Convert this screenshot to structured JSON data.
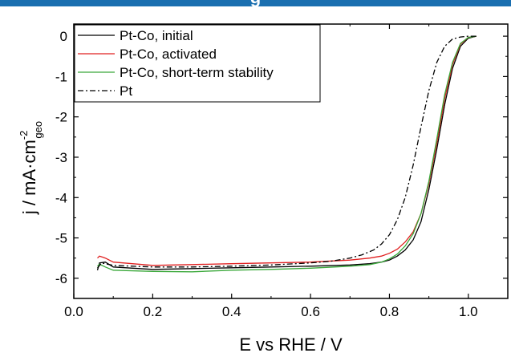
{
  "header": {
    "banner_fragment": "g",
    "banner_color": "#1a6fb0"
  },
  "chart_data": {
    "type": "line",
    "xlabel": "E vs RHE / V",
    "ylabel": "j / mA·cm",
    "ylabel_sup": "-2",
    "ylabel_sub": "geo",
    "xlim": [
      0.0,
      1.1
    ],
    "ylim": [
      -6.5,
      0.3
    ],
    "x_ticks": [
      0.0,
      0.2,
      0.4,
      0.6,
      0.8,
      1.0
    ],
    "x_tick_labels": [
      "0.0",
      "0.2",
      "0.4",
      "0.6",
      "0.8",
      "1.0"
    ],
    "y_ticks": [
      0,
      -1,
      -2,
      -3,
      -4,
      -5,
      -6
    ],
    "y_tick_labels": [
      "0",
      "-1",
      "-2",
      "-3",
      "-4",
      "-5",
      "-6"
    ],
    "legend_position": "top-left",
    "series": [
      {
        "name": "Pt-Co, initial",
        "color": "#000000",
        "dash": "solid",
        "x": [
          0.06,
          0.065,
          0.08,
          0.1,
          0.2,
          0.3,
          0.4,
          0.5,
          0.6,
          0.7,
          0.75,
          0.78,
          0.8,
          0.82,
          0.84,
          0.86,
          0.88,
          0.9,
          0.92,
          0.94,
          0.96,
          0.98,
          1.0,
          1.02
        ],
        "y": [
          -5.8,
          -5.62,
          -5.6,
          -5.72,
          -5.78,
          -5.76,
          -5.74,
          -5.72,
          -5.7,
          -5.67,
          -5.64,
          -5.6,
          -5.55,
          -5.45,
          -5.3,
          -5.05,
          -4.6,
          -3.8,
          -2.8,
          -1.7,
          -0.8,
          -0.25,
          -0.05,
          0.0
        ]
      },
      {
        "name": "Pt-Co, activated",
        "color": "#e02020",
        "dash": "solid",
        "x": [
          0.06,
          0.065,
          0.08,
          0.1,
          0.2,
          0.3,
          0.4,
          0.5,
          0.6,
          0.7,
          0.75,
          0.78,
          0.8,
          0.82,
          0.84,
          0.86,
          0.88,
          0.9,
          0.92,
          0.94,
          0.96,
          0.98,
          1.0,
          1.02
        ],
        "y": [
          -5.5,
          -5.45,
          -5.5,
          -5.6,
          -5.68,
          -5.66,
          -5.64,
          -5.62,
          -5.6,
          -5.55,
          -5.5,
          -5.45,
          -5.38,
          -5.28,
          -5.1,
          -4.85,
          -4.4,
          -3.65,
          -2.65,
          -1.55,
          -0.7,
          -0.2,
          -0.03,
          0.0
        ]
      },
      {
        "name": "Pt-Co, short-term stability",
        "color": "#3aa83a",
        "dash": "solid",
        "x": [
          0.06,
          0.065,
          0.08,
          0.1,
          0.2,
          0.3,
          0.4,
          0.5,
          0.6,
          0.7,
          0.75,
          0.78,
          0.8,
          0.82,
          0.84,
          0.86,
          0.88,
          0.9,
          0.92,
          0.94,
          0.96,
          0.98,
          1.0,
          1.02
        ],
        "y": [
          -5.7,
          -5.65,
          -5.72,
          -5.8,
          -5.83,
          -5.84,
          -5.8,
          -5.78,
          -5.75,
          -5.7,
          -5.66,
          -5.6,
          -5.52,
          -5.4,
          -5.2,
          -4.9,
          -4.4,
          -3.6,
          -2.55,
          -1.45,
          -0.65,
          -0.18,
          -0.03,
          0.0
        ]
      },
      {
        "name": "Pt",
        "color": "#000000",
        "dash": "dashdot",
        "x": [
          0.06,
          0.07,
          0.1,
          0.2,
          0.3,
          0.4,
          0.5,
          0.6,
          0.65,
          0.7,
          0.73,
          0.76,
          0.78,
          0.8,
          0.82,
          0.84,
          0.86,
          0.88,
          0.9,
          0.92,
          0.94,
          0.96,
          0.98,
          1.0,
          1.02
        ],
        "y": [
          -5.75,
          -5.62,
          -5.68,
          -5.72,
          -5.72,
          -5.7,
          -5.67,
          -5.62,
          -5.58,
          -5.5,
          -5.42,
          -5.3,
          -5.15,
          -4.92,
          -4.55,
          -4.0,
          -3.2,
          -2.25,
          -1.35,
          -0.65,
          -0.25,
          -0.07,
          -0.02,
          0.0,
          0.0
        ]
      }
    ]
  }
}
